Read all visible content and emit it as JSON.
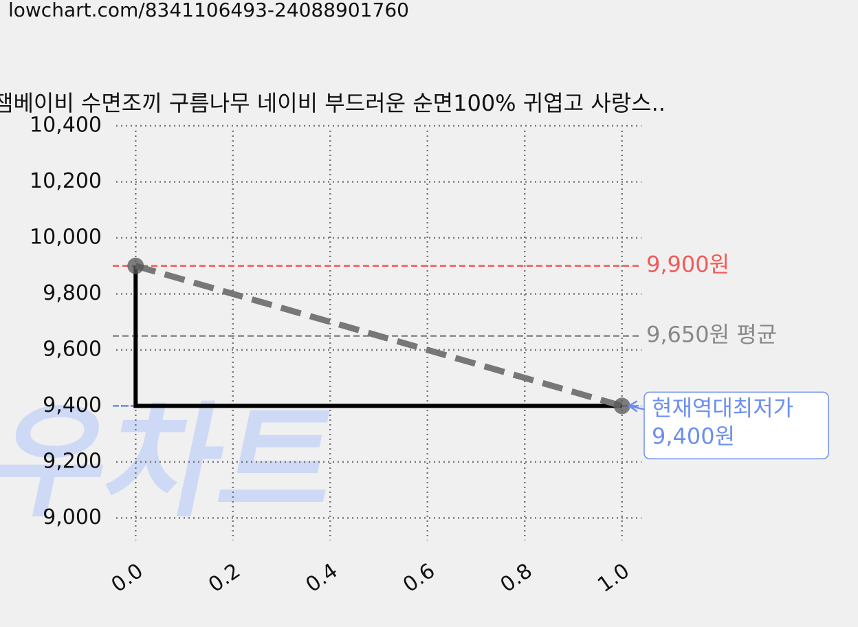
{
  "url": "lowchart.com/8341106493-24088901760",
  "chart_data": {
    "type": "line",
    "title": "잼베이비 수면조끼 구름나무 네이비 부드러운 순면100% 귀엽고 사랑스..",
    "watermark": "로우차트",
    "x": [
      0,
      1
    ],
    "series": [
      {
        "values": [
          9900,
          9400
        ],
        "color": "#000000",
        "step": "pre",
        "trend_color": "#777777"
      }
    ],
    "xlim": [
      -0.04,
      1.04
    ],
    "xticks": [
      {
        "value": 0,
        "label": "0.0"
      },
      0.2,
      0.4,
      0.6,
      0.8,
      {
        "value": 1,
        "label": "1.0"
      }
    ],
    "ylim": [
      8920,
      10400
    ],
    "yticks": [
      {
        "value": 9000,
        "label": "9,000"
      },
      {
        "value": 9200,
        "label": "9,200"
      },
      {
        "value": 9400,
        "label": "9,400"
      },
      {
        "value": 9600,
        "label": "9,600"
      },
      {
        "value": 9800,
        "label": "9,800"
      },
      {
        "value": 10000,
        "label": "10,000"
      },
      {
        "value": 10200,
        "label": "10,200"
      },
      {
        "value": 10400,
        "label": "10,400"
      }
    ],
    "grid": true,
    "hlines": [
      {
        "value": 9900,
        "label": "9,900원",
        "color": "#f25a5a"
      },
      {
        "value": 9650,
        "label": "9,650원 평균",
        "color": "#888888"
      },
      {
        "value": 9400,
        "label": "9,400원",
        "note": "현재역대최저가",
        "color": "#6c8ff0"
      }
    ]
  }
}
